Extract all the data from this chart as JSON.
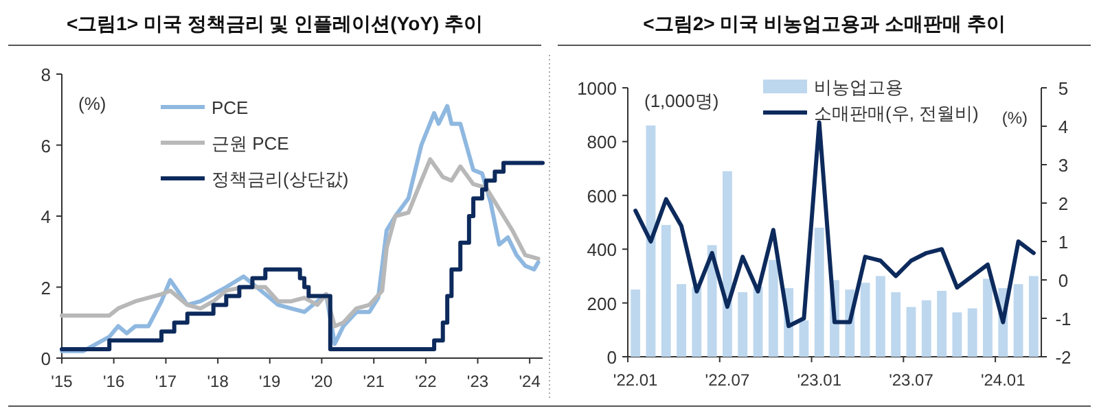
{
  "chart_data": [
    {
      "type": "line",
      "title": "<그림1> 미국 정책금리 및 인플레이션(YoY) 추이",
      "ylabel": "(%)",
      "xlim": [
        "2015-01",
        "2024-04"
      ],
      "xticks": [
        {
          "value": "2015-01",
          "label": "'15"
        },
        {
          "value": "2016-01",
          "label": "'16"
        },
        {
          "value": "2017-01",
          "label": "'17"
        },
        {
          "value": "2018-01",
          "label": "'18"
        },
        {
          "value": "2019-01",
          "label": "'19"
        },
        {
          "value": "2020-01",
          "label": "'20"
        },
        {
          "value": "2021-01",
          "label": "'21"
        },
        {
          "value": "2022-01",
          "label": "'22"
        },
        {
          "value": "2023-01",
          "label": "'23"
        },
        {
          "value": "2024-01",
          "label": "'24"
        }
      ],
      "ylim": [
        0,
        8
      ],
      "yticks": [
        0,
        2,
        4,
        6,
        8
      ],
      "grid": false,
      "legend": "top left",
      "marker": "none",
      "series": [
        {
          "name": "PCE",
          "color": "#8fb8e0",
          "x": [
            "2015-01",
            "2015-06",
            "2015-12",
            "2016-02",
            "2016-04",
            "2016-06",
            "2016-09",
            "2016-12",
            "2017-02",
            "2017-06",
            "2017-09",
            "2017-12",
            "2018-03",
            "2018-07",
            "2018-10",
            "2018-12",
            "2019-03",
            "2019-06",
            "2019-09",
            "2019-12",
            "2020-02",
            "2020-04",
            "2020-06",
            "2020-09",
            "2020-12",
            "2021-02",
            "2021-04",
            "2021-06",
            "2021-09",
            "2021-12",
            "2022-03",
            "2022-04",
            "2022-06",
            "2022-07",
            "2022-09",
            "2022-12",
            "2023-02",
            "2023-04",
            "2023-06",
            "2023-08",
            "2023-10",
            "2023-12",
            "2024-02",
            "2024-03"
          ],
          "values": [
            0.2,
            0.2,
            0.6,
            0.9,
            0.7,
            0.9,
            0.9,
            1.6,
            2.2,
            1.5,
            1.6,
            1.8,
            2.0,
            2.3,
            2.0,
            1.8,
            1.5,
            1.4,
            1.3,
            1.6,
            1.8,
            0.4,
            0.9,
            1.3,
            1.3,
            1.7,
            3.6,
            4.0,
            4.5,
            6.0,
            6.9,
            6.6,
            7.1,
            6.6,
            6.6,
            5.3,
            5.2,
            4.4,
            3.2,
            3.4,
            2.9,
            2.6,
            2.5,
            2.7
          ]
        },
        {
          "name": "근원 PCE",
          "color": "#b8b8b8",
          "x": [
            "2015-01",
            "2015-06",
            "2015-12",
            "2016-02",
            "2016-06",
            "2016-12",
            "2017-02",
            "2017-06",
            "2017-09",
            "2017-12",
            "2018-03",
            "2018-07",
            "2018-10",
            "2018-12",
            "2019-03",
            "2019-06",
            "2019-09",
            "2019-12",
            "2020-02",
            "2020-04",
            "2020-06",
            "2020-09",
            "2020-12",
            "2021-03",
            "2021-04",
            "2021-06",
            "2021-09",
            "2021-12",
            "2022-02",
            "2022-05",
            "2022-07",
            "2022-09",
            "2022-12",
            "2023-03",
            "2023-06",
            "2023-09",
            "2023-12",
            "2024-03"
          ],
          "values": [
            1.2,
            1.2,
            1.2,
            1.4,
            1.6,
            1.8,
            1.9,
            1.5,
            1.4,
            1.6,
            1.9,
            2.0,
            2.0,
            2.0,
            1.6,
            1.6,
            1.7,
            1.5,
            1.8,
            0.9,
            1.0,
            1.4,
            1.5,
            1.9,
            3.1,
            4.0,
            4.1,
            5.0,
            5.6,
            5.1,
            5.0,
            5.4,
            4.9,
            4.8,
            4.2,
            3.6,
            2.9,
            2.8
          ]
        },
        {
          "name": "정책금리(상단값)",
          "type": "step",
          "color": "#0d2a5c",
          "x": [
            "2015-01",
            "2015-12",
            "2016-12",
            "2017-03",
            "2017-06",
            "2017-12",
            "2018-03",
            "2018-06",
            "2018-09",
            "2018-12",
            "2019-08",
            "2019-09",
            "2019-10",
            "2020-03",
            "2022-03",
            "2022-05",
            "2022-06",
            "2022-07",
            "2022-09",
            "2022-11",
            "2022-12",
            "2023-02",
            "2023-03",
            "2023-05",
            "2023-07",
            "2024-04"
          ],
          "values": [
            0.25,
            0.5,
            0.75,
            1.0,
            1.25,
            1.5,
            1.75,
            2.0,
            2.25,
            2.5,
            2.25,
            2.0,
            1.75,
            0.25,
            0.5,
            1.0,
            1.75,
            2.5,
            3.25,
            4.0,
            4.5,
            4.75,
            5.0,
            5.25,
            5.5,
            5.5
          ]
        }
      ]
    },
    {
      "type": "bar",
      "title": "<그림2> 미국 비농업고용과 소매판매 추이",
      "ylabel": "(1,000명)",
      "y2label": "(%)",
      "categories": [
        "'22.01",
        null,
        null,
        null,
        null,
        null,
        "'22.07",
        null,
        null,
        null,
        null,
        null,
        "'23.01",
        null,
        null,
        null,
        null,
        null,
        "'23.07",
        null,
        null,
        null,
        null,
        null,
        "'24.01",
        null,
        null
      ],
      "ylim": [
        0,
        1000
      ],
      "yticks": [
        0,
        200,
        400,
        600,
        800,
        1000
      ],
      "y2lim": [
        -2,
        5
      ],
      "y2ticks": [
        -2,
        -1,
        0,
        1,
        2,
        3,
        4,
        5
      ],
      "grid": false,
      "legend": "top",
      "marker": "none",
      "series": [
        {
          "name": "비농업고용",
          "color": "#bdd7ee",
          "values": [
            250,
            860,
            490,
            270,
            260,
            415,
            690,
            240,
            260,
            360,
            255,
            135,
            480,
            285,
            250,
            275,
            300,
            240,
            185,
            210,
            245,
            165,
            180,
            290,
            255,
            270,
            300
          ]
        },
        {
          "name": "소매판매(우, 전월비)",
          "type": "line",
          "axis": "y2",
          "color": "#0d2a5c",
          "values": [
            1.8,
            1.0,
            2.1,
            1.4,
            -0.3,
            0.7,
            -0.7,
            0.6,
            -0.3,
            1.3,
            -1.2,
            -1.0,
            4.1,
            -1.1,
            -1.1,
            0.6,
            0.5,
            0.1,
            0.5,
            0.7,
            0.8,
            -0.2,
            0.1,
            0.4,
            -1.1,
            1.0,
            0.7
          ]
        }
      ]
    }
  ]
}
